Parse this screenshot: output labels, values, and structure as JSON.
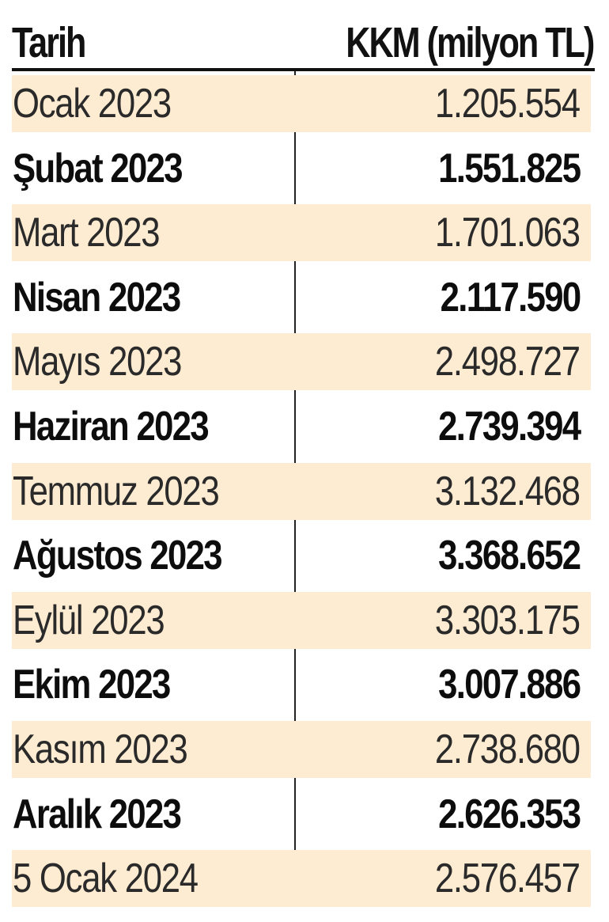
{
  "table": {
    "headers": {
      "date": "Tarih",
      "value": "KKM (milyon TL)"
    },
    "colors": {
      "stripe": "#feecd2",
      "rule": "#111111",
      "text": "#111111"
    },
    "rows": [
      {
        "date": "Ocak 2023",
        "value": "1.205.554",
        "bold": false
      },
      {
        "date": "Şubat 2023",
        "value": "1.551.825",
        "bold": true
      },
      {
        "date": "Mart 2023",
        "value": "1.701.063",
        "bold": false
      },
      {
        "date": "Nisan 2023",
        "value": "2.117.590",
        "bold": true
      },
      {
        "date": "Mayıs 2023",
        "value": "2.498.727",
        "bold": false
      },
      {
        "date": "Haziran 2023",
        "value": "2.739.394",
        "bold": true
      },
      {
        "date": "Temmuz 2023",
        "value": "3.132.468",
        "bold": false
      },
      {
        "date": "Ağustos 2023",
        "value": "3.368.652",
        "bold": true
      },
      {
        "date": "Eylül 2023",
        "value": "3.303.175",
        "bold": false
      },
      {
        "date": "Ekim 2023",
        "value": "3.007.886",
        "bold": true
      },
      {
        "date": "Kasım 2023",
        "value": "2.738.680",
        "bold": false
      },
      {
        "date": "Aralık 2023",
        "value": "2.626.353",
        "bold": true
      },
      {
        "date": "5 Ocak 2024",
        "value": "2.576.457",
        "bold": false
      }
    ]
  }
}
